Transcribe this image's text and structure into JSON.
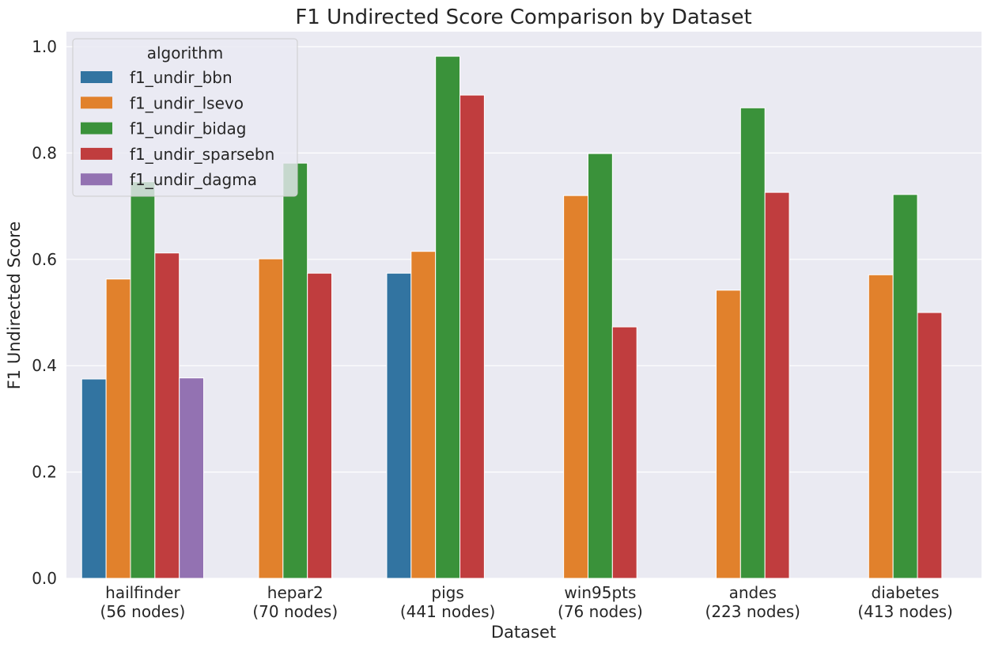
{
  "chart_data": {
    "type": "bar",
    "title": "F1 Undirected Score Comparison by Dataset",
    "xlabel": "Dataset",
    "ylabel": "F1 Undirected Score",
    "ylim": [
      0,
      1.02
    ],
    "yticks": [
      0.0,
      0.2,
      0.4,
      0.6,
      0.8,
      1.0
    ],
    "ytick_labels": [
      "0.0",
      "0.2",
      "0.4",
      "0.6",
      "0.8",
      "1.0"
    ],
    "grid": true,
    "legend": {
      "title": "algorithm",
      "placement": "top-left"
    },
    "categories": [
      [
        "hailfinder",
        "(56 nodes)"
      ],
      [
        "hepar2",
        "(70 nodes)"
      ],
      [
        "pigs",
        "(441 nodes)"
      ],
      [
        "win95pts",
        "(76 nodes)"
      ],
      [
        "andes",
        "(223 nodes)"
      ],
      [
        "diabetes",
        "(413 nodes)"
      ]
    ],
    "series": [
      {
        "name": "f1_undir_bbn",
        "color": "#3274a1",
        "values": [
          0.375,
          null,
          0.574,
          null,
          null,
          null
        ]
      },
      {
        "name": "f1_undir_lsevo",
        "color": "#e1812c",
        "values": [
          0.563,
          0.601,
          0.615,
          0.72,
          0.542,
          0.571
        ]
      },
      {
        "name": "f1_undir_bidag",
        "color": "#3a923a",
        "values": [
          0.746,
          0.781,
          0.982,
          0.799,
          0.885,
          0.722
        ]
      },
      {
        "name": "f1_undir_sparsebn",
        "color": "#c03d3e",
        "values": [
          0.612,
          0.574,
          0.909,
          0.473,
          0.726,
          0.5
        ]
      },
      {
        "name": "f1_undir_dagma",
        "color": "#9372b2",
        "values": [
          0.377,
          null,
          null,
          null,
          null,
          null
        ]
      }
    ]
  }
}
